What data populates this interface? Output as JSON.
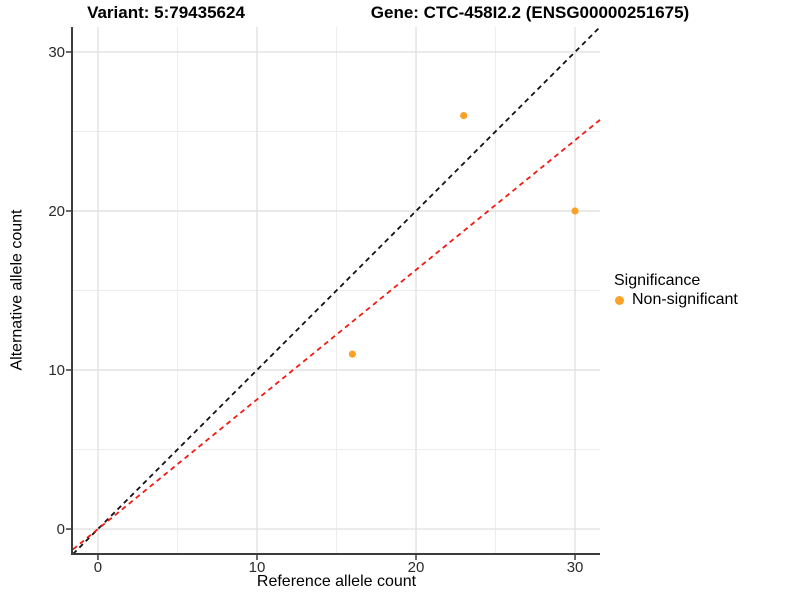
{
  "chart_data": {
    "type": "scatter",
    "titles": {
      "variant": "Variant: 5:79435624",
      "gene": "Gene: CTC-458I2.2 (ENSG00000251675)"
    },
    "xlabel": "Reference allele count",
    "ylabel": "Alternative allele count",
    "xlim": [
      -1.57,
      31.57
    ],
    "ylim": [
      -1.57,
      31.57
    ],
    "x_ticks": [
      0,
      10,
      20,
      30
    ],
    "y_ticks": [
      0,
      10,
      20,
      30
    ],
    "x_minor_ticks": [
      5,
      15,
      25
    ],
    "y_minor_ticks": [
      5,
      15,
      25
    ],
    "grid": true,
    "series": [
      {
        "name": "Non-significant",
        "color": "#FBA226",
        "points": [
          {
            "x": 16,
            "y": 11
          },
          {
            "x": 23,
            "y": 26
          },
          {
            "x": 30,
            "y": 20
          }
        ]
      }
    ],
    "lines": [
      {
        "name": "identity-line",
        "slope": 1,
        "intercept": 0,
        "color": "#111111",
        "style": "dashed"
      },
      {
        "name": "fit-line",
        "slope": 0.815,
        "intercept": 0,
        "color": "#F21B12",
        "style": "dashed"
      }
    ],
    "legend": {
      "title": "Significance",
      "position": "right",
      "items": [
        {
          "label": "Non-significant",
          "color": "#FBA226"
        }
      ]
    }
  },
  "style": {
    "background": "#FFFFFF",
    "grid_major_color": "#E2E2E2",
    "grid_minor_color": "#EDEDED",
    "axis_line_color": "#3C3C3C",
    "tick_color": "#3C3C3C",
    "tick_label_color": "#2B2B2B",
    "text_color": "#000000"
  }
}
